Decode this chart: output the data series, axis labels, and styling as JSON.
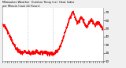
{
  "title": "Milwaukee Weather  Outdoor Temp (vs)  Heat Index per Minute (Last 24 Hours)",
  "background_color": "#f0f0f0",
  "plot_bg_color": "#ffffff",
  "line_color": "#ff0000",
  "line_width": 0.7,
  "ylim": [
    10,
    75
  ],
  "yticks": [
    10,
    20,
    30,
    40,
    50,
    60,
    70
  ],
  "num_points": 1440,
  "vline_positions": [
    360,
    720
  ],
  "vline_color": "#aaaaaa",
  "vline_style": ":",
  "tick_label_fontsize": 3.0,
  "title_fontsize": 2.5,
  "curve": [
    [
      0.0,
      55
    ],
    [
      0.03,
      52
    ],
    [
      0.06,
      44
    ],
    [
      0.09,
      36
    ],
    [
      0.12,
      28
    ],
    [
      0.15,
      23
    ],
    [
      0.18,
      21
    ],
    [
      0.2,
      20
    ],
    [
      0.22,
      22
    ],
    [
      0.24,
      20
    ],
    [
      0.26,
      21
    ],
    [
      0.28,
      19
    ],
    [
      0.3,
      21
    ],
    [
      0.32,
      20
    ],
    [
      0.34,
      22
    ],
    [
      0.36,
      20
    ],
    [
      0.38,
      21
    ],
    [
      0.4,
      20
    ],
    [
      0.42,
      21
    ],
    [
      0.44,
      20
    ],
    [
      0.46,
      19
    ],
    [
      0.48,
      20
    ],
    [
      0.5,
      19
    ],
    [
      0.52,
      20
    ],
    [
      0.54,
      22
    ],
    [
      0.56,
      25
    ],
    [
      0.58,
      30
    ],
    [
      0.6,
      37
    ],
    [
      0.62,
      45
    ],
    [
      0.64,
      52
    ],
    [
      0.66,
      60
    ],
    [
      0.68,
      66
    ],
    [
      0.69,
      69
    ],
    [
      0.7,
      70
    ],
    [
      0.71,
      67
    ],
    [
      0.72,
      63
    ],
    [
      0.73,
      60
    ],
    [
      0.74,
      58
    ],
    [
      0.75,
      57
    ],
    [
      0.76,
      59
    ],
    [
      0.77,
      61
    ],
    [
      0.78,
      63
    ],
    [
      0.79,
      62
    ],
    [
      0.8,
      60
    ],
    [
      0.81,
      58
    ],
    [
      0.82,
      55
    ],
    [
      0.83,
      53
    ],
    [
      0.84,
      52
    ],
    [
      0.85,
      54
    ],
    [
      0.86,
      57
    ],
    [
      0.87,
      59
    ],
    [
      0.88,
      61
    ],
    [
      0.89,
      59
    ],
    [
      0.9,
      57
    ],
    [
      0.91,
      55
    ],
    [
      0.92,
      54
    ],
    [
      0.93,
      56
    ],
    [
      0.94,
      58
    ],
    [
      0.95,
      57
    ],
    [
      0.96,
      56
    ],
    [
      0.97,
      54
    ],
    [
      0.98,
      52
    ],
    [
      0.99,
      50
    ],
    [
      1.0,
      48
    ]
  ]
}
